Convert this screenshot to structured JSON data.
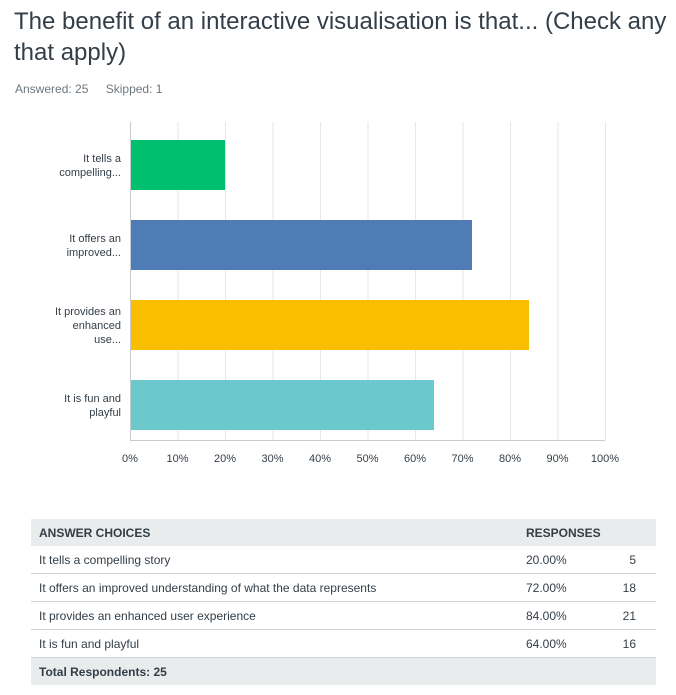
{
  "question": {
    "title": "The benefit of an interactive visualisation is that... (Check any that apply)",
    "answered_label": "Answered: 25",
    "skipped_label": "Skipped: 1"
  },
  "chart_data": {
    "type": "bar",
    "orientation": "horizontal",
    "categories": [
      "It tells a compelling...",
      "It offers an improved...",
      "It provides an enhanced use...",
      "It is fun and playful"
    ],
    "values": [
      20,
      72,
      84,
      64
    ],
    "colors": [
      "#00bf6f",
      "#507cb6",
      "#f9be00",
      "#6bc8cd"
    ],
    "xlim": [
      0,
      100
    ],
    "ticks": [
      "0%",
      "10%",
      "20%",
      "30%",
      "40%",
      "50%",
      "60%",
      "70%",
      "80%",
      "90%",
      "100%"
    ],
    "grid": true
  },
  "table": {
    "headers": [
      "ANSWER CHOICES",
      "RESPONSES"
    ],
    "rows": [
      {
        "choice": "It tells a compelling story",
        "percent": "20.00%",
        "count": "5"
      },
      {
        "choice": "It offers an improved understanding of what the data represents",
        "percent": "72.00%",
        "count": "18"
      },
      {
        "choice": "It provides an enhanced user experience",
        "percent": "84.00%",
        "count": "21"
      },
      {
        "choice": "It is fun and playful",
        "percent": "64.00%",
        "count": "16"
      }
    ],
    "total_label": "Total Respondents: 25"
  }
}
